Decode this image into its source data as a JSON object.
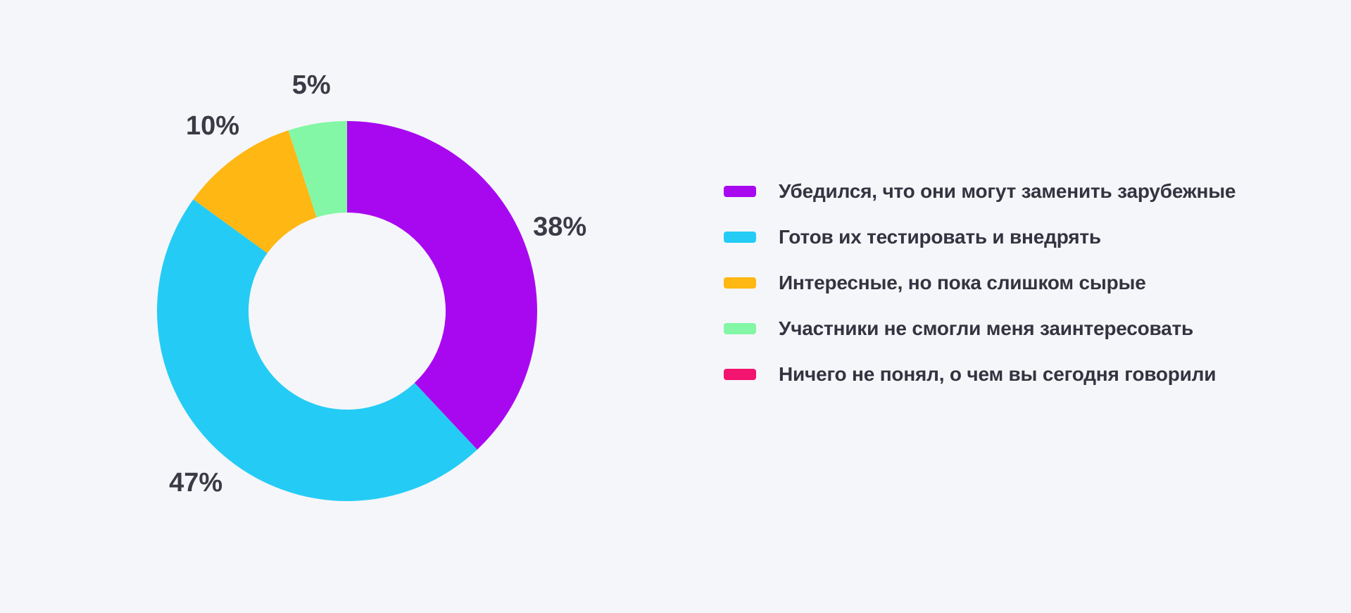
{
  "page": {
    "background": "#F5F6FA",
    "value_label_color": "#3B3A45",
    "legend_text_color": "#343340"
  },
  "chart_data": {
    "type": "pie",
    "variant": "donut",
    "start_angle_deg": 0,
    "direction": "clockwise",
    "legend_position": "right",
    "grid": false,
    "series": [
      {
        "label": "Убедился, что они могут заменить зарубежные",
        "value": 38,
        "percent_label": "38%",
        "color": "#A808F0"
      },
      {
        "label": "Готов их тестировать и внедрять",
        "value": 47,
        "percent_label": "47%",
        "color": "#24CCF5"
      },
      {
        "label": "Интересные, но пока слишком сырые",
        "value": 10,
        "percent_label": "10%",
        "color": "#FFB714"
      },
      {
        "label": "Участники не смогли меня заинтересовать",
        "value": 5,
        "percent_label": "5%",
        "color": "#83F7A6"
      },
      {
        "label": "Ничего не понял, о чем вы сегодня говорили",
        "value": 0,
        "percent_label": "",
        "color": "#F2146E"
      }
    ]
  }
}
